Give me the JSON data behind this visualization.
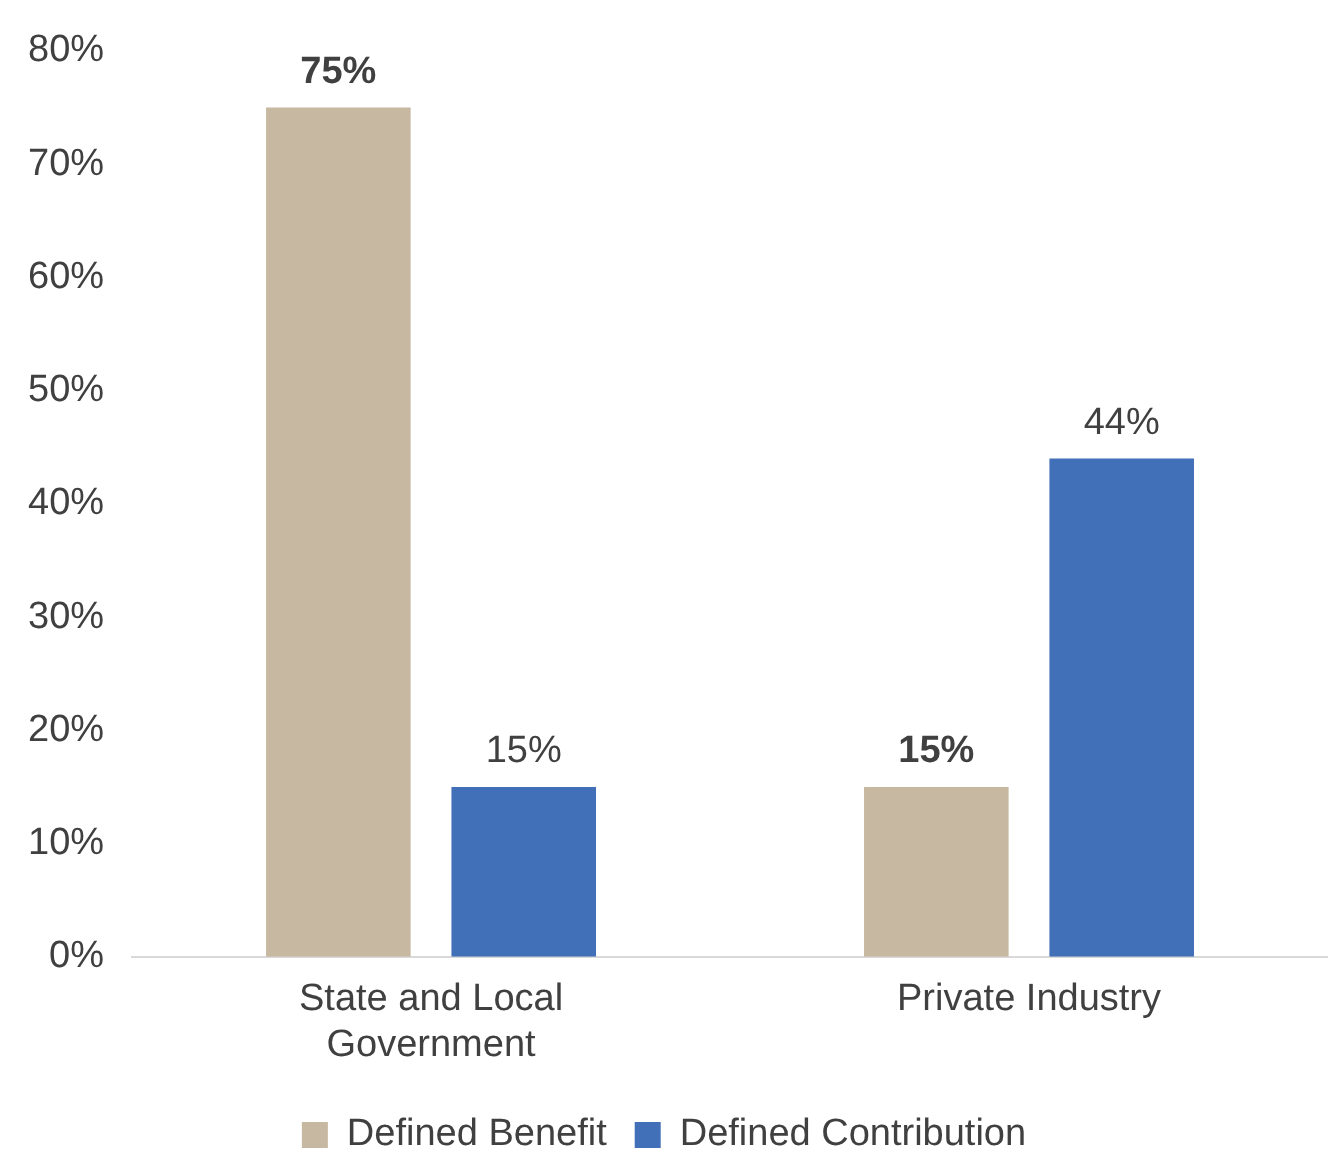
{
  "chart_data": {
    "type": "bar",
    "categories": [
      "State and Local Government",
      "Private Industry"
    ],
    "series": [
      {
        "name": "Defined Benefit",
        "color": "#c7b8a1",
        "values": [
          75,
          15
        ],
        "value_labels": [
          "75%",
          "15%"
        ]
      },
      {
        "name": "Defined Contribution",
        "color": "#4270b8",
        "values": [
          15,
          44
        ],
        "value_labels": [
          "15%",
          "44%"
        ]
      }
    ],
    "ylim": [
      0,
      80
    ],
    "yticks": [
      {
        "value": 0,
        "label": "0%"
      },
      {
        "value": 10,
        "label": "10%"
      },
      {
        "value": 20,
        "label": "20%"
      },
      {
        "value": 30,
        "label": "30%"
      },
      {
        "value": 40,
        "label": "40%"
      },
      {
        "value": 50,
        "label": "50%"
      },
      {
        "value": 60,
        "label": "60%"
      },
      {
        "value": 70,
        "label": "70%"
      },
      {
        "value": 80,
        "label": "80%"
      }
    ],
    "grid": false,
    "legend": "bottom"
  }
}
